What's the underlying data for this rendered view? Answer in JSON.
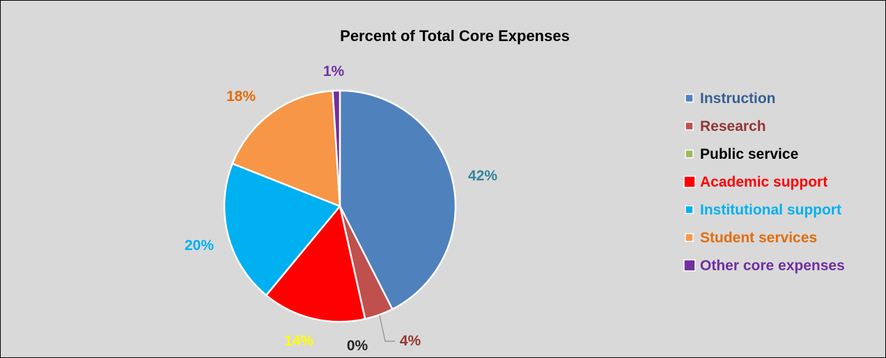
{
  "chart_data": {
    "type": "pie",
    "title": "Percent of Total Core Expenses",
    "categories": [
      "Instruction",
      "Research",
      "Public service",
      "Academic support",
      "Institutional support",
      "Student services",
      "Other core expenses"
    ],
    "values": [
      42.5,
      4,
      0,
      14.5,
      20,
      18,
      1
    ],
    "data_labels": [
      "42%",
      "4%",
      "0%",
      "14%",
      "20%",
      "18%",
      "1%"
    ],
    "colors": [
      "#4f81bd",
      "#c0504d",
      "#9bbb59",
      "#ff0000",
      "#00b0f0",
      "#f79646",
      "#7030a0"
    ],
    "label_colors": [
      "#31859c",
      "#943634",
      "#262626",
      "#ffff00",
      "#00b0f0",
      "#e46c0a",
      "#7030a0"
    ],
    "legend_text_colors": [
      "#366092",
      "#943634",
      "#000000",
      "#ff0000",
      "#00b0f0",
      "#e46c0a",
      "#7030a0"
    ],
    "legend_position": "right"
  }
}
